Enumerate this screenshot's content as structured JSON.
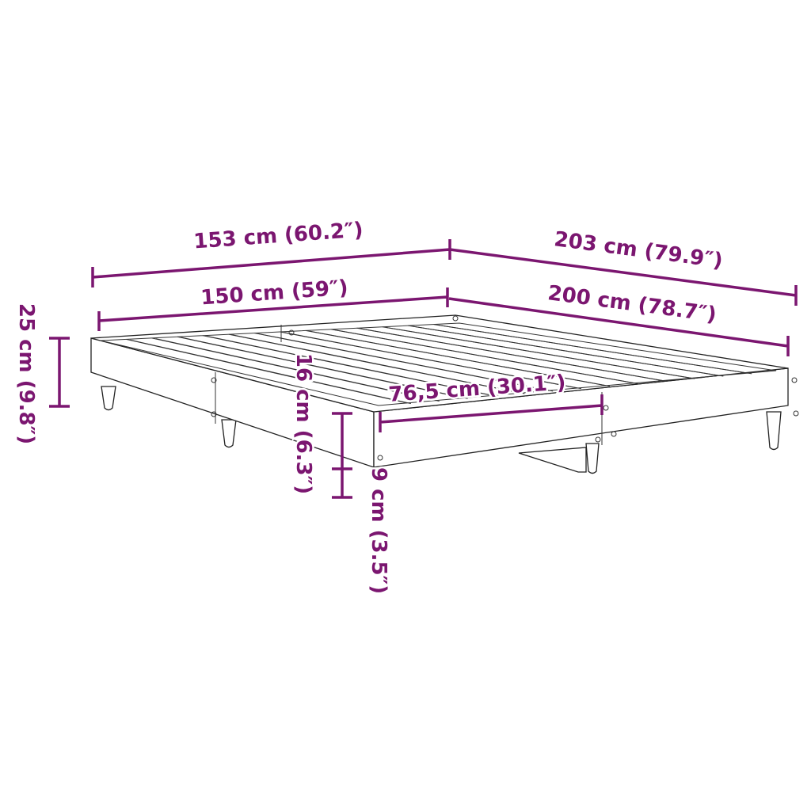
{
  "accent_color": "#7b1670",
  "dimensions": {
    "outer_width": "153 cm (60.2″)",
    "outer_length": "203 cm (79.9″)",
    "inner_width": "150 cm (59″)",
    "inner_length": "200 cm (78.7″)",
    "total_height": "25 cm (9.8″)",
    "frame_height": "16 cm (6.3″)",
    "clearance": "9 cm (3.5″)",
    "half_width": "76,5 cm (30.1″)"
  }
}
